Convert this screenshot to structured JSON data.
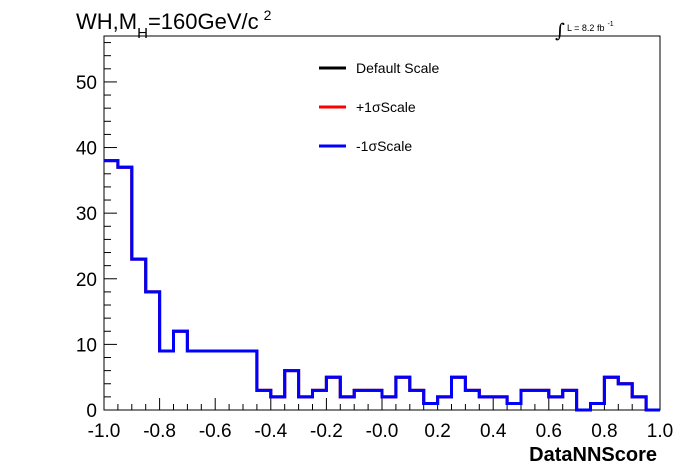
{
  "chart_data": {
    "type": "line",
    "title": {
      "prefix": "WH,M",
      "subscript": "H",
      "value": "=160GeV/c",
      "superscript": "2"
    },
    "luminosity": {
      "integral_symbol": "∫",
      "text": "L = 8.2 fb",
      "superscript": "-1"
    },
    "xlabel": "DataNNScore",
    "ylabel": "",
    "xlim": [
      -1.0,
      1.0
    ],
    "ylim": [
      0,
      57
    ],
    "x_ticks": [
      "-1.0",
      "-0.8",
      "-0.6",
      "-0.4",
      "-0.2",
      "-0.0",
      "0.2",
      "0.4",
      "0.6",
      "0.8",
      "1.0"
    ],
    "y_ticks": [
      "0",
      "10",
      "20",
      "30",
      "40",
      "50"
    ],
    "bin_edges": [
      -1.0,
      -0.95,
      -0.9,
      -0.85,
      -0.8,
      -0.75,
      -0.7,
      -0.65,
      -0.6,
      -0.55,
      -0.5,
      -0.45,
      -0.4,
      -0.35,
      -0.3,
      -0.25,
      -0.2,
      -0.15,
      -0.1,
      -0.05,
      0.0,
      0.05,
      0.1,
      0.15,
      0.2,
      0.25,
      0.3,
      0.35,
      0.4,
      0.45,
      0.5,
      0.55,
      0.6,
      0.65,
      0.7,
      0.75,
      0.8,
      0.85,
      0.9,
      0.95,
      1.0
    ],
    "series": [
      {
        "name": "Default Scale",
        "color": "#000000",
        "values": [
          38,
          37,
          23,
          18,
          9,
          12,
          9,
          9,
          9,
          9,
          9,
          3,
          2,
          6,
          2,
          3,
          5,
          2,
          3,
          3,
          2,
          5,
          3,
          1,
          2,
          5,
          3,
          2,
          2,
          1,
          3,
          3,
          2,
          3,
          0,
          1,
          5,
          4,
          2,
          0
        ]
      },
      {
        "name": "+1σScale",
        "color": "#ff0000",
        "values": [
          38,
          37,
          23,
          18,
          9,
          12,
          9,
          9,
          9,
          9,
          9,
          3,
          2,
          6,
          2,
          3,
          5,
          2,
          3,
          3,
          2,
          5,
          3,
          1,
          2,
          5,
          3,
          2,
          2,
          1,
          3,
          3,
          2,
          3,
          0,
          1,
          5,
          4,
          2,
          0
        ]
      },
      {
        "name": "-1σScale",
        "color": "#0000ff",
        "values": [
          38,
          37,
          23,
          18,
          9,
          12,
          9,
          9,
          9,
          9,
          9,
          3,
          2,
          6,
          2,
          3,
          5,
          2,
          3,
          3,
          2,
          5,
          3,
          1,
          2,
          5,
          3,
          2,
          2,
          1,
          3,
          3,
          2,
          3,
          0,
          1,
          5,
          4,
          2,
          0
        ]
      }
    ],
    "legend_position": "top-center",
    "grid": false
  }
}
